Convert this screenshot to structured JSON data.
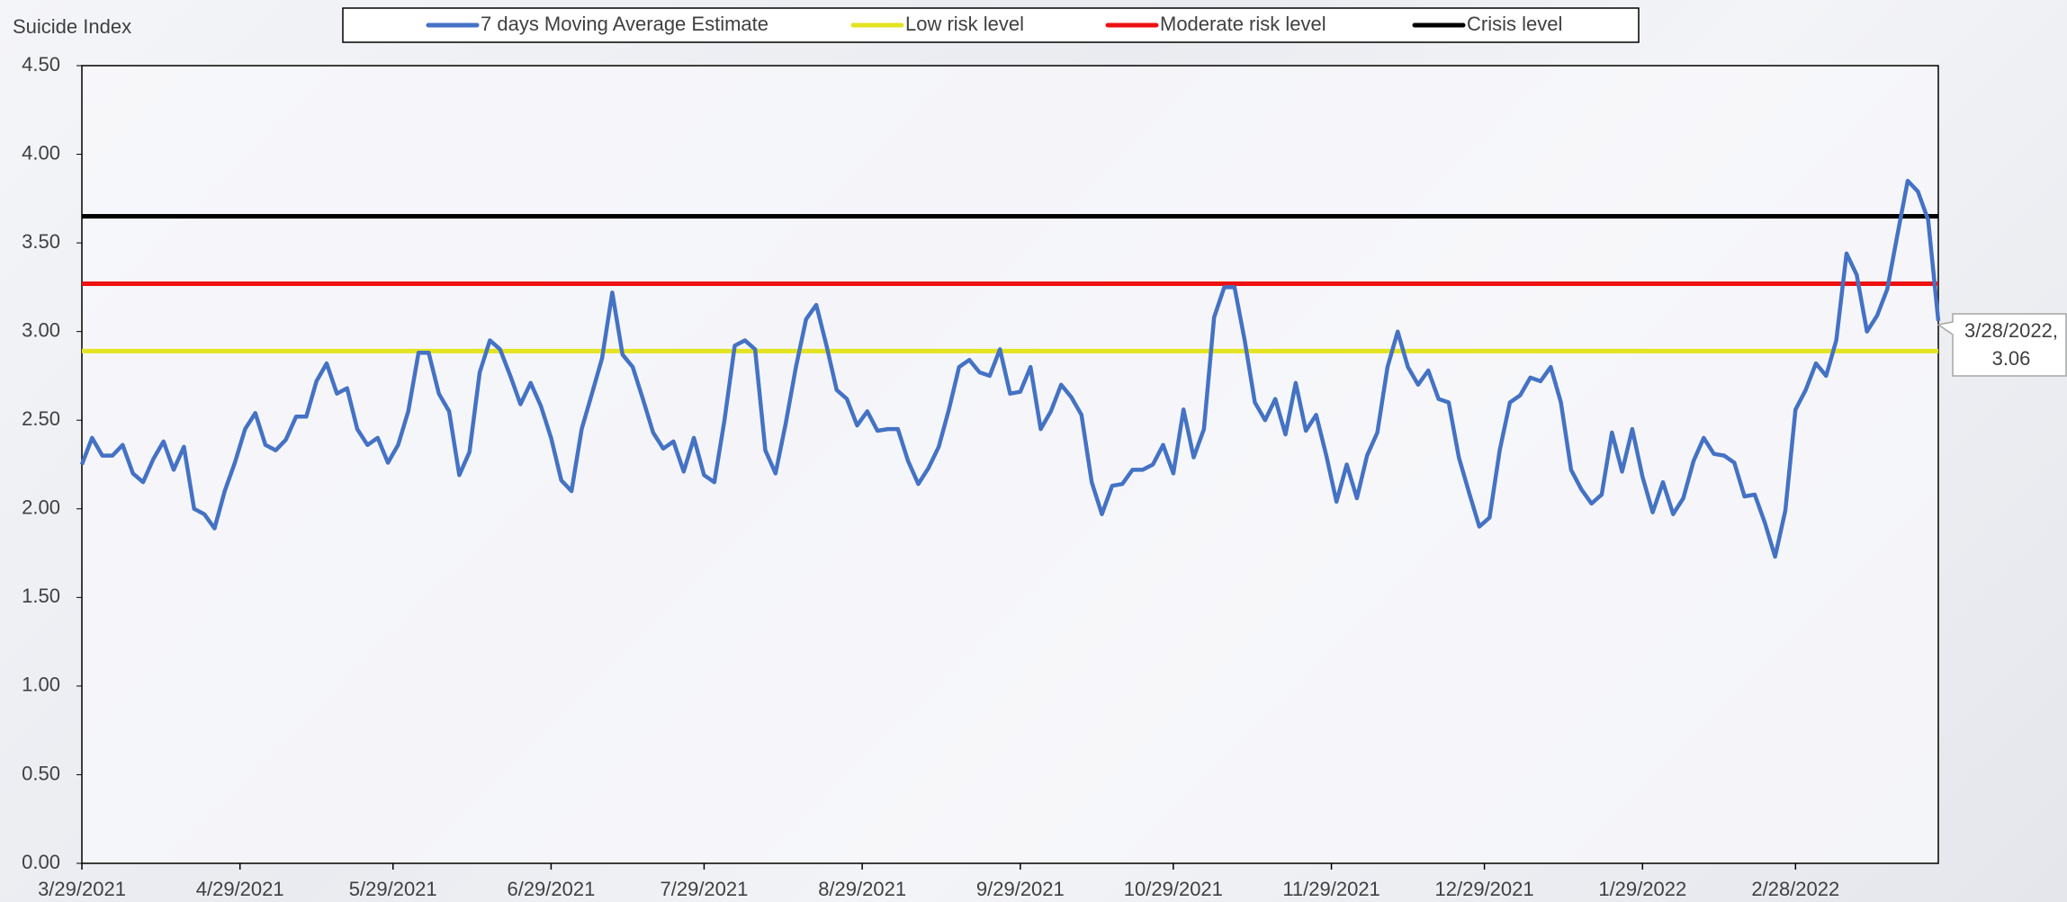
{
  "chart_data": {
    "type": "line",
    "y_axis_label": "Suicide Index",
    "x": [
      "3/29/2021",
      "3/31/2021",
      "4/2/2021",
      "4/4/2021",
      "4/6/2021",
      "4/8/2021",
      "4/10/2021",
      "4/12/2021",
      "4/14/2021",
      "4/16/2021",
      "4/18/2021",
      "4/20/2021",
      "4/22/2021",
      "4/24/2021",
      "4/26/2021",
      "4/28/2021",
      "4/30/2021",
      "5/2/2021",
      "5/4/2021",
      "5/6/2021",
      "5/8/2021",
      "5/10/2021",
      "5/12/2021",
      "5/14/2021",
      "5/16/2021",
      "5/18/2021",
      "5/20/2021",
      "5/22/2021",
      "5/24/2021",
      "5/26/2021",
      "5/28/2021",
      "5/30/2021",
      "6/1/2021",
      "6/3/2021",
      "6/5/2021",
      "6/7/2021",
      "6/9/2021",
      "6/11/2021",
      "6/13/2021",
      "6/15/2021",
      "6/17/2021",
      "6/19/2021",
      "6/21/2021",
      "6/23/2021",
      "6/25/2021",
      "6/27/2021",
      "6/29/2021",
      "7/1/2021",
      "7/3/2021",
      "7/5/2021",
      "7/7/2021",
      "7/9/2021",
      "7/11/2021",
      "7/13/2021",
      "7/15/2021",
      "7/17/2021",
      "7/19/2021",
      "7/21/2021",
      "7/23/2021",
      "7/25/2021",
      "7/27/2021",
      "7/29/2021",
      "7/31/2021",
      "8/2/2021",
      "8/4/2021",
      "8/6/2021",
      "8/8/2021",
      "8/10/2021",
      "8/12/2021",
      "8/14/2021",
      "8/16/2021",
      "8/18/2021",
      "8/20/2021",
      "8/22/2021",
      "8/24/2021",
      "8/26/2021",
      "8/28/2021",
      "8/30/2021",
      "9/1/2021",
      "9/3/2021",
      "9/5/2021",
      "9/7/2021",
      "9/9/2021",
      "9/11/2021",
      "9/13/2021",
      "9/15/2021",
      "9/17/2021",
      "9/19/2021",
      "9/21/2021",
      "9/23/2021",
      "9/25/2021",
      "9/27/2021",
      "9/29/2021",
      "10/1/2021",
      "10/3/2021",
      "10/5/2021",
      "10/7/2021",
      "10/9/2021",
      "10/11/2021",
      "10/13/2021",
      "10/15/2021",
      "10/17/2021",
      "10/19/2021",
      "10/21/2021",
      "10/23/2021",
      "10/25/2021",
      "10/27/2021",
      "10/29/2021",
      "10/31/2021",
      "11/2/2021",
      "11/4/2021",
      "11/6/2021",
      "11/8/2021",
      "11/10/2021",
      "11/12/2021",
      "11/14/2021",
      "11/16/2021",
      "11/18/2021",
      "11/20/2021",
      "11/22/2021",
      "11/24/2021",
      "11/26/2021",
      "11/28/2021",
      "11/30/2021",
      "12/2/2021",
      "12/4/2021",
      "12/6/2021",
      "12/8/2021",
      "12/10/2021",
      "12/12/2021",
      "12/14/2021",
      "12/16/2021",
      "12/18/2021",
      "12/20/2021",
      "12/22/2021",
      "12/24/2021",
      "12/26/2021",
      "12/28/2021",
      "12/30/2021",
      "1/1/2022",
      "1/3/2022",
      "1/5/2022",
      "1/7/2022",
      "1/9/2022",
      "1/11/2022",
      "1/13/2022",
      "1/15/2022",
      "1/17/2022",
      "1/19/2022",
      "1/21/2022",
      "1/23/2022",
      "1/25/2022",
      "1/27/2022",
      "1/29/2022",
      "1/31/2022",
      "2/2/2022",
      "2/4/2022",
      "2/6/2022",
      "2/8/2022",
      "2/10/2022",
      "2/12/2022",
      "2/14/2022",
      "2/16/2022",
      "2/18/2022",
      "2/20/2022",
      "2/22/2022",
      "2/24/2022",
      "2/26/2022",
      "2/28/2022",
      "3/2/2022",
      "3/4/2022",
      "3/6/2022",
      "3/8/2022",
      "3/10/2022",
      "3/12/2022",
      "3/14/2022",
      "3/16/2022",
      "3/18/2022",
      "3/20/2022",
      "3/22/2022",
      "3/24/2022",
      "3/26/2022",
      "3/28/2022"
    ],
    "series": [
      {
        "name": "7 days Moving Average Estimate",
        "color": "#4472c4",
        "values": [
          2.25,
          2.4,
          2.3,
          2.3,
          2.36,
          2.2,
          2.15,
          2.28,
          2.38,
          2.22,
          2.35,
          2.0,
          1.97,
          1.89,
          2.1,
          2.26,
          2.45,
          2.54,
          2.36,
          2.33,
          2.39,
          2.52,
          2.52,
          2.72,
          2.82,
          2.65,
          2.68,
          2.45,
          2.36,
          2.4,
          2.26,
          2.36,
          2.55,
          2.88,
          2.88,
          2.65,
          2.55,
          2.19,
          2.32,
          2.77,
          2.95,
          2.9,
          2.75,
          2.59,
          2.71,
          2.58,
          2.4,
          2.16,
          2.1,
          2.45,
          2.65,
          2.85,
          3.22,
          2.87,
          2.8,
          2.62,
          2.43,
          2.34,
          2.38,
          2.21,
          2.4,
          2.19,
          2.15,
          2.5,
          2.92,
          2.95,
          2.9,
          2.33,
          2.2,
          2.48,
          2.8,
          3.07,
          3.15,
          2.92,
          2.67,
          2.62,
          2.47,
          2.55,
          2.44,
          2.45,
          2.45,
          2.27,
          2.14,
          2.23,
          2.35,
          2.56,
          2.8,
          2.84,
          2.77,
          2.75,
          2.9,
          2.65,
          2.66,
          2.8,
          2.45,
          2.55,
          2.7,
          2.63,
          2.53,
          2.15,
          1.97,
          2.13,
          2.14,
          2.22,
          2.22,
          2.25,
          2.36,
          2.2,
          2.56,
          2.29,
          2.45,
          3.08,
          3.25,
          3.25,
          2.95,
          2.6,
          2.5,
          2.62,
          2.42,
          2.71,
          2.44,
          2.53,
          2.3,
          2.04,
          2.25,
          2.06,
          2.3,
          2.43,
          2.8,
          3.0,
          2.8,
          2.7,
          2.78,
          2.62,
          2.6,
          2.29,
          2.09,
          1.9,
          1.95,
          2.33,
          2.6,
          2.64,
          2.74,
          2.72,
          2.8,
          2.6,
          2.22,
          2.11,
          2.03,
          2.08,
          2.43,
          2.21,
          2.45,
          2.18,
          1.98,
          2.15,
          1.97,
          2.06,
          2.27,
          2.4,
          2.31,
          2.3,
          2.26,
          2.07,
          2.08,
          1.92,
          1.73,
          1.99,
          2.56,
          2.67,
          2.82,
          2.75,
          2.95,
          3.44,
          3.32,
          3.0,
          3.09,
          3.24,
          3.55,
          3.85,
          3.79,
          3.63,
          3.06
        ]
      }
    ],
    "reference_lines": [
      {
        "name": "Low risk level",
        "color": "#e3e321",
        "value": 2.89
      },
      {
        "name": "Moderate risk level",
        "color": "#ee1111",
        "value": 3.27
      },
      {
        "name": "Crisis level",
        "color": "#000000",
        "value": 3.65
      }
    ],
    "data_label": [
      "3/28/2022,",
      "3.06"
    ],
    "xlim": [
      "3/29/2021",
      "3/28/2022"
    ],
    "xticks": [
      "3/29/2021",
      "4/29/2021",
      "5/29/2021",
      "6/29/2021",
      "7/29/2021",
      "8/29/2021",
      "9/29/2021",
      "10/29/2021",
      "11/29/2021",
      "12/29/2021",
      "1/29/2022",
      "2/28/2022"
    ],
    "ylim": [
      0,
      4.5
    ],
    "yticks": [
      {
        "value": 0,
        "label": "0.00"
      },
      {
        "value": 0.5,
        "label": "0.50"
      },
      {
        "value": 1,
        "label": "1.00"
      },
      {
        "value": 1.5,
        "label": "1.50"
      },
      {
        "value": 2,
        "label": "2.00"
      },
      {
        "value": 2.5,
        "label": "2.50"
      },
      {
        "value": 3,
        "label": "3.00"
      },
      {
        "value": 3.5,
        "label": "3.50"
      },
      {
        "value": 4,
        "label": "4.00"
      },
      {
        "value": 4.5,
        "label": "4.50"
      }
    ]
  }
}
